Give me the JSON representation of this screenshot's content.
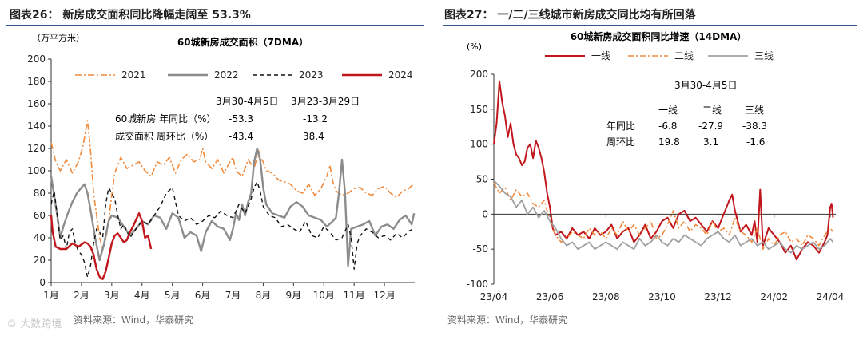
{
  "left_panel": {
    "title": "图表26：  新房成交面积同比降幅走阔至 53.3%",
    "source": "资料来源：Wind，华泰研究",
    "watermark": "© 大数跨境"
  },
  "right_panel": {
    "title": "图表27：  一/二/三线城市新房成交同比均有所回落",
    "source": "资料来源：Wind，华泰研究"
  },
  "chart_data": [
    {
      "type": "line",
      "title": "60城新房成交面积（7DMA）",
      "unit_label": "（万平方米）",
      "ylim": [
        0,
        200
      ],
      "yticks": [
        "0",
        "20",
        "40",
        "60",
        "80",
        "100",
        "120",
        "140",
        "160",
        "180",
        "200"
      ],
      "xlim": [
        0,
        12
      ],
      "xticks": [
        "1月",
        "2月",
        "3月",
        "4月",
        "5月",
        "6月",
        "7月",
        "8月",
        "9月",
        "10月",
        "11月",
        "12月"
      ],
      "series": [
        {
          "name": "2021",
          "color": "#f08a3c",
          "dash": "8 3 2 3",
          "width": 1.6,
          "x": [
            0,
            0.05,
            0.15,
            0.3,
            0.5,
            0.7,
            0.9,
            1.05,
            1.2,
            1.3,
            1.4,
            1.5,
            1.6,
            1.7,
            1.8,
            1.9,
            2.0,
            2.1,
            2.3,
            2.5,
            2.7,
            2.9,
            3.1,
            3.3,
            3.5,
            3.7,
            3.9,
            4.1,
            4.3,
            4.5,
            4.7,
            4.9,
            5.0,
            5.1,
            5.3,
            5.5,
            5.7,
            5.9,
            6.0,
            6.1,
            6.3,
            6.5,
            6.7,
            6.85,
            6.9,
            7.0,
            7.1,
            7.3,
            7.5,
            7.7,
            7.9,
            8.1,
            8.3,
            8.5,
            8.7,
            8.9,
            9.1,
            9.2,
            9.3,
            9.4,
            9.6,
            9.8,
            10.0,
            10.2,
            10.4,
            10.6,
            10.8,
            11.0,
            11.2,
            11.4,
            11.6,
            11.8,
            11.95
          ],
          "y": [
            125,
            120,
            108,
            100,
            110,
            98,
            108,
            122,
            145,
            118,
            80,
            60,
            40,
            30,
            38,
            55,
            78,
            98,
            112,
            102,
            105,
            108,
            100,
            95,
            108,
            105,
            112,
            98,
            110,
            115,
            108,
            110,
            120,
            108,
            102,
            110,
            98,
            108,
            112,
            100,
            95,
            110,
            102,
            118,
            112,
            108,
            100,
            98,
            92,
            90,
            88,
            82,
            80,
            88,
            78,
            84,
            95,
            105,
            90,
            82,
            78,
            80,
            84,
            85,
            80,
            78,
            84,
            86,
            80,
            76,
            82,
            84,
            88
          ]
        },
        {
          "name": "2022",
          "color": "#8c8c8c",
          "dash": "",
          "width": 2.4,
          "x": [
            0,
            0.1,
            0.2,
            0.3,
            0.4,
            0.55,
            0.7,
            0.85,
            1.0,
            1.1,
            1.2,
            1.3,
            1.45,
            1.6,
            1.75,
            1.9,
            2.0,
            2.2,
            2.4,
            2.6,
            2.8,
            3.0,
            3.2,
            3.4,
            3.6,
            3.8,
            4.0,
            4.2,
            4.4,
            4.6,
            4.8,
            4.95,
            5.1,
            5.3,
            5.5,
            5.7,
            5.9,
            6.0,
            6.1,
            6.2,
            6.3,
            6.4,
            6.5,
            6.6,
            6.7,
            6.8,
            6.9,
            7.0,
            7.1,
            7.3,
            7.5,
            7.7,
            7.9,
            8.1,
            8.3,
            8.5,
            8.7,
            8.9,
            9.1,
            9.3,
            9.4,
            9.5,
            9.6,
            9.7,
            9.8,
            9.9,
            10.1,
            10.3,
            10.5,
            10.7,
            10.9,
            11.1,
            11.3,
            11.5,
            11.7,
            11.9,
            11.98
          ],
          "y": [
            95,
            78,
            60,
            40,
            50,
            62,
            72,
            80,
            85,
            88,
            80,
            65,
            40,
            20,
            35,
            55,
            60,
            58,
            50,
            42,
            48,
            55,
            52,
            60,
            58,
            48,
            62,
            58,
            40,
            45,
            42,
            28,
            45,
            55,
            50,
            48,
            38,
            48,
            62,
            56,
            70,
            60,
            72,
            80,
            108,
            120,
            110,
            85,
            70,
            62,
            60,
            58,
            68,
            72,
            68,
            60,
            58,
            56,
            50,
            55,
            58,
            80,
            110,
            80,
            15,
            48,
            50,
            52,
            55,
            42,
            50,
            52,
            48,
            56,
            60,
            52,
            62
          ]
        },
        {
          "name": "2023",
          "color": "#111111",
          "dash": "5 4",
          "width": 1.4,
          "x": [
            0,
            0.1,
            0.2,
            0.3,
            0.4,
            0.5,
            0.6,
            0.7,
            0.8,
            0.9,
            1.0,
            1.1,
            1.2,
            1.3,
            1.4,
            1.5,
            1.6,
            1.7,
            1.8,
            1.9,
            2.0,
            2.1,
            2.2,
            2.3,
            2.4,
            2.6,
            2.8,
            3.0,
            3.2,
            3.4,
            3.6,
            3.8,
            4.0,
            4.2,
            4.4,
            4.6,
            4.8,
            5.0,
            5.2,
            5.4,
            5.6,
            5.8,
            6.0,
            6.2,
            6.4,
            6.6,
            6.7,
            6.8,
            6.9,
            7.0,
            7.2,
            7.4,
            7.6,
            7.8,
            8.0,
            8.2,
            8.4,
            8.6,
            8.8,
            9.0,
            9.2,
            9.4,
            9.6,
            9.8,
            9.9,
            10.0,
            10.1,
            10.2,
            10.4,
            10.6,
            10.8,
            11.0,
            11.2,
            11.4,
            11.6,
            11.8,
            11.95
          ],
          "y": [
            70,
            82,
            60,
            38,
            42,
            30,
            45,
            48,
            35,
            28,
            25,
            18,
            5,
            15,
            35,
            48,
            45,
            40,
            70,
            85,
            80,
            75,
            60,
            48,
            52,
            40,
            48,
            55,
            52,
            60,
            68,
            80,
            85,
            60,
            55,
            58,
            52,
            55,
            60,
            58,
            64,
            60,
            58,
            70,
            62,
            75,
            85,
            90,
            82,
            68,
            60,
            58,
            50,
            52,
            48,
            45,
            55,
            42,
            40,
            50,
            45,
            38,
            40,
            52,
            40,
            12,
            35,
            42,
            48,
            45,
            40,
            42,
            38,
            44,
            40,
            46,
            48
          ]
        },
        {
          "name": "2024",
          "color": "#c0161c",
          "dash": "",
          "width": 2.4,
          "x": [
            0,
            0.05,
            0.15,
            0.3,
            0.5,
            0.7,
            0.9,
            1.0,
            1.1,
            1.2,
            1.3,
            1.4,
            1.5,
            1.6,
            1.7,
            1.8,
            1.9,
            2.0,
            2.1,
            2.2,
            2.3,
            2.4,
            2.5,
            2.6,
            2.7,
            2.8,
            2.9,
            3.0,
            3.1,
            3.2,
            3.3
          ],
          "y": [
            60,
            45,
            32,
            30,
            30,
            35,
            32,
            34,
            36,
            35,
            32,
            25,
            12,
            5,
            3,
            10,
            22,
            35,
            42,
            44,
            40,
            36,
            38,
            45,
            50,
            56,
            62,
            55,
            40,
            42,
            30
          ]
        }
      ],
      "annotation": {
        "col1_header": "3月30-4月5日",
        "col2_header": "3月23-3月29日",
        "row1_label": "60城新房 年同比（%）",
        "row2_label": "成交面积 周环比（%）",
        "row1_values": [
          "-53.3",
          "-13.2"
        ],
        "row2_values": [
          "-43.4",
          "38.4"
        ]
      }
    },
    {
      "type": "line",
      "title": "60城新房成交面积同比增速（14DMA）",
      "unit_label": "(%)",
      "ylim": [
        -100,
        200
      ],
      "yticks": [
        "-100",
        "-50",
        "0",
        "50",
        "100",
        "150",
        "200"
      ],
      "xlim": [
        0,
        12.2
      ],
      "xticks": [
        "23/04",
        "23/06",
        "23/08",
        "23/10",
        "23/12",
        "24/02",
        "24/04"
      ],
      "xtick_positions": [
        0,
        2,
        4,
        6,
        8,
        10,
        12
      ],
      "series": [
        {
          "name": "一线",
          "color": "#c0161c",
          "dash": "",
          "width": 2.0,
          "x": [
            0,
            0.1,
            0.2,
            0.3,
            0.4,
            0.5,
            0.6,
            0.7,
            0.8,
            0.9,
            1.0,
            1.1,
            1.2,
            1.3,
            1.4,
            1.5,
            1.6,
            1.7,
            1.8,
            1.9,
            2.0,
            2.1,
            2.2,
            2.4,
            2.6,
            2.8,
            3.0,
            3.2,
            3.4,
            3.6,
            3.8,
            4.0,
            4.2,
            4.4,
            4.6,
            4.8,
            5.0,
            5.2,
            5.4,
            5.6,
            5.8,
            6.0,
            6.2,
            6.4,
            6.6,
            6.8,
            7.0,
            7.2,
            7.4,
            7.6,
            7.8,
            8.0,
            8.2,
            8.4,
            8.5,
            8.6,
            8.8,
            9.0,
            9.2,
            9.3,
            9.4,
            9.5,
            9.6,
            9.8,
            10.0,
            10.2,
            10.4,
            10.6,
            10.8,
            11.0,
            11.2,
            11.4,
            11.6,
            11.8,
            11.9,
            12.0,
            12.05,
            12.1
          ],
          "y": [
            100,
            130,
            190,
            160,
            140,
            110,
            130,
            100,
            85,
            80,
            70,
            75,
            95,
            100,
            80,
            105,
            95,
            80,
            60,
            30,
            10,
            -20,
            -30,
            -25,
            -35,
            -20,
            -30,
            -25,
            -35,
            -20,
            -30,
            -25,
            -15,
            -35,
            -25,
            -20,
            -40,
            -30,
            -15,
            -35,
            -25,
            -10,
            -5,
            -20,
            0,
            5,
            -10,
            -5,
            -15,
            -25,
            -10,
            -20,
            0,
            20,
            28,
            5,
            -25,
            -15,
            -30,
            -10,
            -40,
            35,
            -45,
            -20,
            -30,
            -40,
            -55,
            -45,
            -65,
            -50,
            -40,
            -45,
            -55,
            -40,
            -30,
            10,
            15,
            -5
          ]
        },
        {
          "name": "二线",
          "color": "#f08a3c",
          "dash": "7 3 2 3",
          "width": 1.6,
          "x": [
            0,
            0.2,
            0.4,
            0.6,
            0.8,
            1.0,
            1.2,
            1.4,
            1.6,
            1.8,
            2.0,
            2.2,
            2.4,
            2.6,
            2.8,
            3.0,
            3.2,
            3.4,
            3.6,
            3.8,
            4.0,
            4.2,
            4.4,
            4.6,
            4.8,
            5.0,
            5.2,
            5.4,
            5.6,
            5.8,
            6.0,
            6.2,
            6.4,
            6.6,
            6.8,
            7.0,
            7.2,
            7.4,
            7.6,
            7.8,
            8.0,
            8.2,
            8.4,
            8.6,
            8.8,
            9.0,
            9.2,
            9.4,
            9.6,
            9.8,
            10.0,
            10.2,
            10.4,
            10.6,
            10.8,
            11.0,
            11.2,
            11.4,
            11.6,
            11.8,
            12.0,
            12.1
          ],
          "y": [
            45,
            30,
            38,
            20,
            35,
            25,
            30,
            15,
            10,
            20,
            -10,
            -30,
            -40,
            -35,
            -25,
            -30,
            -35,
            -20,
            -30,
            -25,
            -35,
            -20,
            -30,
            -10,
            -25,
            -15,
            -30,
            -20,
            -10,
            -35,
            -30,
            -15,
            5,
            -20,
            -10,
            -25,
            -15,
            -20,
            -30,
            -10,
            -25,
            -20,
            -30,
            -5,
            -25,
            -30,
            -40,
            -20,
            -50,
            -35,
            -45,
            -30,
            -25,
            -40,
            -35,
            -45,
            -30,
            -35,
            -45,
            -30,
            -20,
            -25
          ]
        },
        {
          "name": "三线",
          "color": "#a0a0a0",
          "dash": "",
          "width": 1.8,
          "x": [
            0,
            0.2,
            0.4,
            0.6,
            0.8,
            1.0,
            1.2,
            1.4,
            1.6,
            1.8,
            2.0,
            2.2,
            2.4,
            2.6,
            2.8,
            3.0,
            3.2,
            3.4,
            3.6,
            3.8,
            4.0,
            4.2,
            4.4,
            4.6,
            4.8,
            5.0,
            5.2,
            5.4,
            5.6,
            5.8,
            6.0,
            6.2,
            6.4,
            6.6,
            6.8,
            7.0,
            7.2,
            7.4,
            7.6,
            7.8,
            8.0,
            8.2,
            8.4,
            8.6,
            8.8,
            9.0,
            9.2,
            9.4,
            9.6,
            9.8,
            10.0,
            10.2,
            10.4,
            10.6,
            10.8,
            11.0,
            11.2,
            11.4,
            11.6,
            11.8,
            12.0,
            12.1
          ],
          "y": [
            48,
            40,
            30,
            25,
            10,
            20,
            0,
            10,
            -5,
            5,
            -10,
            -20,
            -35,
            -45,
            -40,
            -50,
            -45,
            -40,
            -50,
            -45,
            -40,
            -45,
            -50,
            -40,
            -45,
            -50,
            -35,
            -45,
            -40,
            -30,
            -40,
            -45,
            -35,
            -40,
            -30,
            -35,
            -40,
            -45,
            -35,
            -30,
            -25,
            -35,
            -40,
            -30,
            -45,
            -40,
            -35,
            -45,
            -40,
            -50,
            -45,
            -40,
            -50,
            -55,
            -45,
            -50,
            -45,
            -40,
            -50,
            -45,
            -35,
            -40
          ]
        }
      ],
      "annotation": {
        "period": "3月30-4月5日",
        "headers": [
          "一线",
          "二线",
          "三线"
        ],
        "row1_label": "年同比",
        "row2_label": "周环比",
        "row1_values": [
          "-6.8",
          "-27.9",
          "-38.3"
        ],
        "row2_values": [
          "19.8",
          "3.1",
          "-1.6"
        ]
      }
    }
  ]
}
